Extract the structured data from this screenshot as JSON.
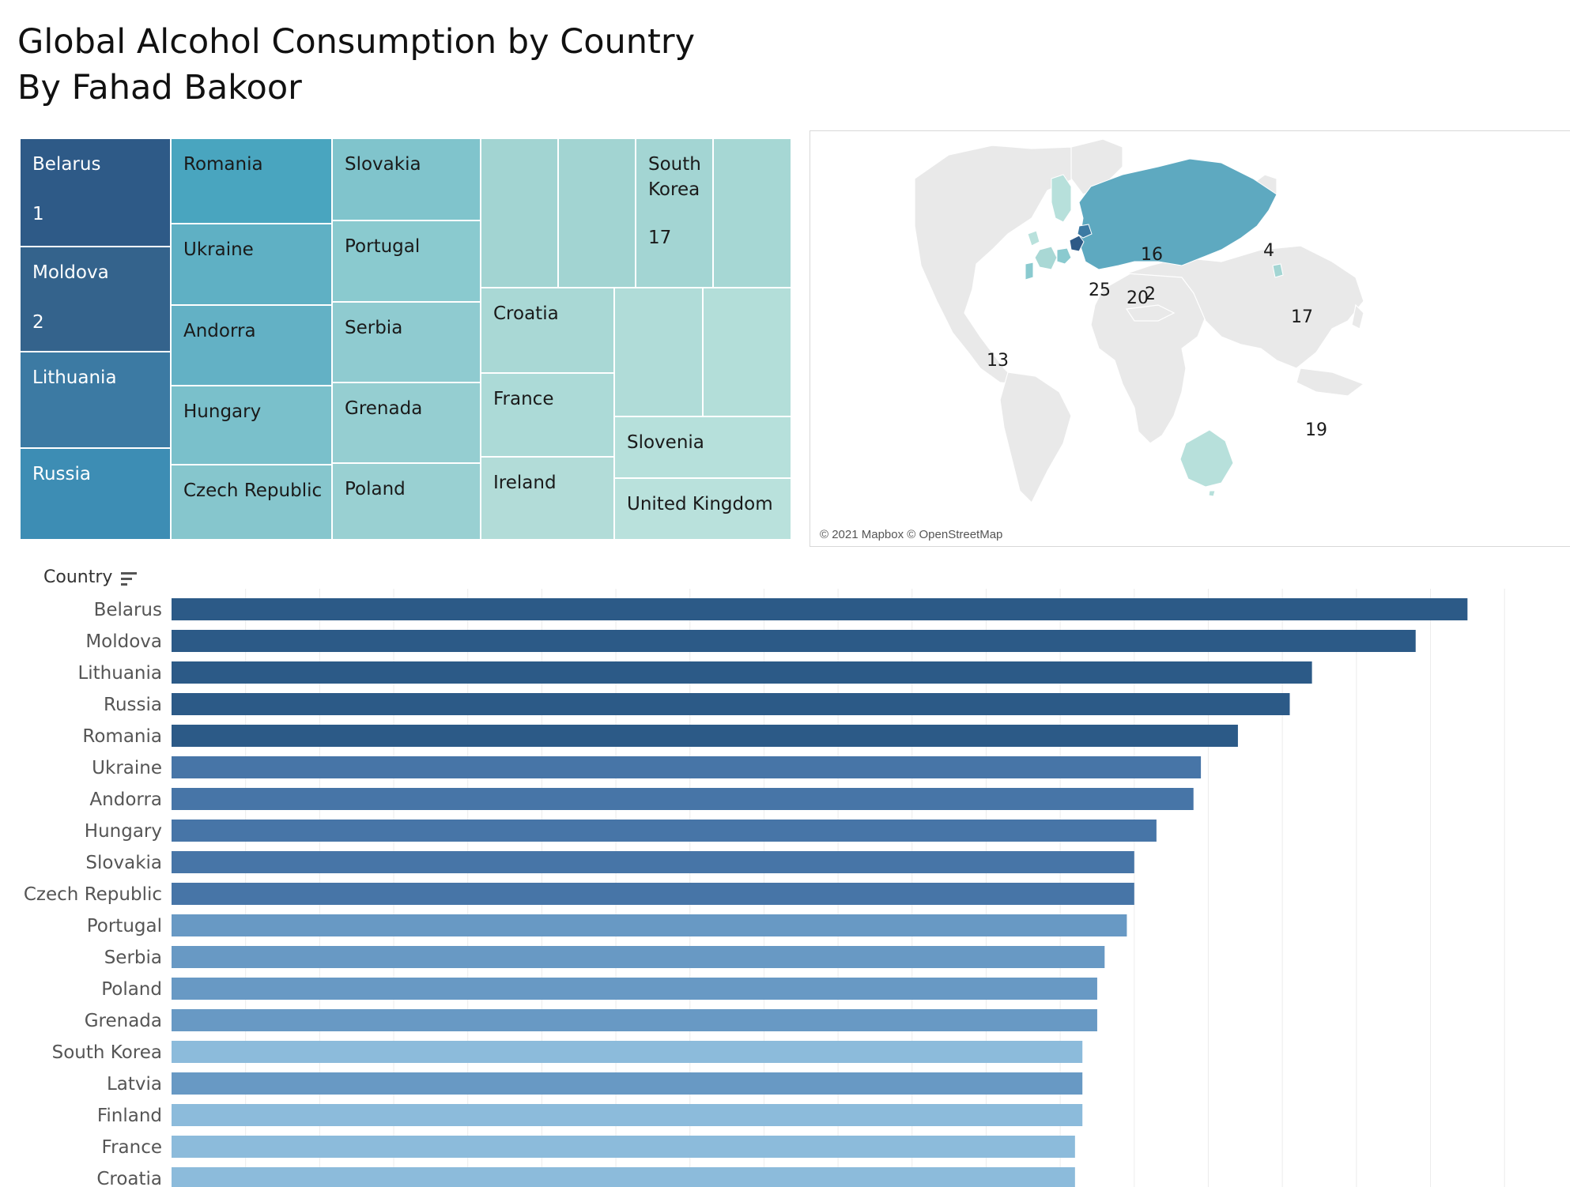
{
  "title": {
    "line1": "Global Alcohol Consumption by Country",
    "line2": "By Fahad Bakoor"
  },
  "treemap": {
    "cells": [
      {
        "name": "Belarus",
        "rank": "1",
        "color": "#2e5a87"
      },
      {
        "name": "Moldova",
        "rank": "2",
        "color": "#34638c"
      },
      {
        "name": "Lithuania",
        "rank": "",
        "color": "#3c7aa3"
      },
      {
        "name": "Russia",
        "rank": "",
        "color": "#3d8db4"
      },
      {
        "name": "Romania",
        "rank": "",
        "color": "#49a5bf"
      },
      {
        "name": "Ukraine",
        "rank": "",
        "color": "#5fb0c4"
      },
      {
        "name": "Andorra",
        "rank": "",
        "color": "#63b1c5"
      },
      {
        "name": "Hungary",
        "rank": "",
        "color": "#7ac0cb"
      },
      {
        "name": "Czech Republic",
        "rank": "",
        "color": "#86c6cd"
      },
      {
        "name": "Slovakia",
        "rank": "",
        "color": "#80c4cc"
      },
      {
        "name": "Portugal",
        "rank": "",
        "color": "#8acacf"
      },
      {
        "name": "Serbia",
        "rank": "",
        "color": "#8fcbd0"
      },
      {
        "name": "Grenada",
        "rank": "",
        "color": "#95ced1"
      },
      {
        "name": "Poland",
        "rank": "",
        "color": "#99d0d2"
      },
      {
        "name": "",
        "rank": "",
        "color": "#a2d4d2"
      },
      {
        "name": "",
        "rank": "",
        "color": "#a2d4d2"
      },
      {
        "name": "South\nKorea",
        "rank": "17",
        "color": "#a3d5d3"
      },
      {
        "name": "",
        "rank": "",
        "color": "#a6d7d4"
      },
      {
        "name": "Croatia",
        "rank": "",
        "color": "#a9d8d5"
      },
      {
        "name": "France",
        "rank": "",
        "color": "#acdad7"
      },
      {
        "name": "Ireland",
        "rank": "",
        "color": "#b2dcd8"
      },
      {
        "name": "",
        "rank": "",
        "color": "#b0dcd8"
      },
      {
        "name": "",
        "rank": "",
        "color": "#b3ded9"
      },
      {
        "name": "Slovenia",
        "rank": "",
        "color": "#b6e0db"
      },
      {
        "name": "United Kingdom",
        "rank": "",
        "color": "#b9e1dc"
      }
    ]
  },
  "map": {
    "labels": [
      "4",
      "16",
      "25",
      "20",
      "2",
      "17",
      "13",
      "19"
    ],
    "credit": "© 2021 Mapbox © OpenStreetMap"
  },
  "bar_header": {
    "label": "Country"
  },
  "chart_data": {
    "type": "bar",
    "orientation": "horizontal",
    "categories": [
      "Belarus",
      "Moldova",
      "Lithuania",
      "Russia",
      "Romania",
      "Ukraine",
      "Andorra",
      "Hungary",
      "Slovakia",
      "Czech Republic",
      "Portugal",
      "Serbia",
      "Poland",
      "Grenada",
      "South Korea",
      "Latvia",
      "Finland",
      "France",
      "Croatia"
    ],
    "values": [
      17.5,
      16.8,
      15.4,
      15.1,
      14.4,
      13.9,
      13.8,
      13.3,
      13.0,
      13.0,
      12.9,
      12.6,
      12.5,
      12.5,
      12.3,
      12.3,
      12.3,
      12.2,
      12.2
    ],
    "colors": [
      "#2c5a87",
      "#2c5a87",
      "#2c5a87",
      "#2c5a87",
      "#2c5a87",
      "#4775a7",
      "#4775a7",
      "#4775a7",
      "#4775a7",
      "#4775a7",
      "#6899c4",
      "#6899c4",
      "#6899c4",
      "#6899c4",
      "#8cbbdb",
      "#6899c4",
      "#8cbbdb",
      "#8cbbdb",
      "#8cbbdb"
    ],
    "xlim": [
      0,
      18.5
    ],
    "grid": true,
    "title": "",
    "xlabel": "",
    "ylabel": "Country"
  }
}
